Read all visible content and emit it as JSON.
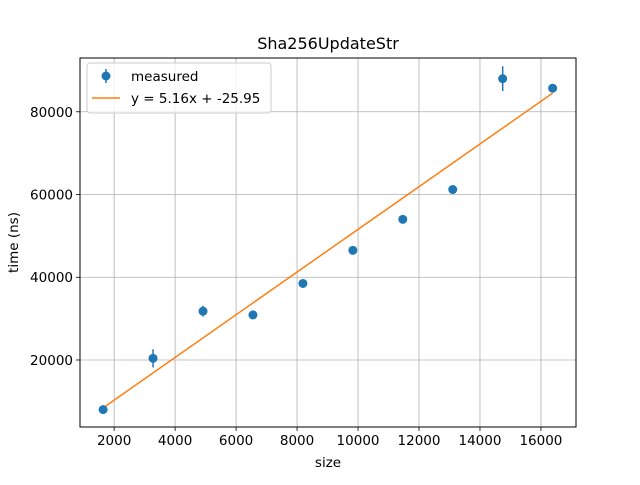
{
  "chart_data": {
    "type": "scatter",
    "title": "Sha256UpdateStr",
    "xlabel": "size",
    "ylabel": "time (ns)",
    "xlim": [
      880,
      17150
    ],
    "ylim": [
      3800,
      93000
    ],
    "xticks": [
      2000,
      4000,
      6000,
      8000,
      10000,
      12000,
      14000,
      16000
    ],
    "yticks": [
      20000,
      40000,
      60000,
      80000
    ],
    "grid": true,
    "legend_position": "top-left",
    "series": [
      {
        "name": "measured",
        "kind": "errorbar",
        "color": "#1f77b4",
        "x": [
          1638,
          3276,
          4915,
          6553,
          8192,
          9830,
          11468,
          13107,
          14745,
          16384
        ],
        "y": [
          8000,
          20400,
          31800,
          30900,
          38500,
          46500,
          54000,
          61200,
          88000,
          85700
        ],
        "yerr": [
          600,
          2200,
          1300,
          600,
          600,
          600,
          600,
          600,
          3000,
          600
        ]
      },
      {
        "name": "y = 5.16x + -25.95",
        "kind": "line",
        "color": "#ff7f0e",
        "slope": 5.16,
        "intercept": -25.95,
        "x": [
          1638,
          16384
        ]
      }
    ]
  }
}
